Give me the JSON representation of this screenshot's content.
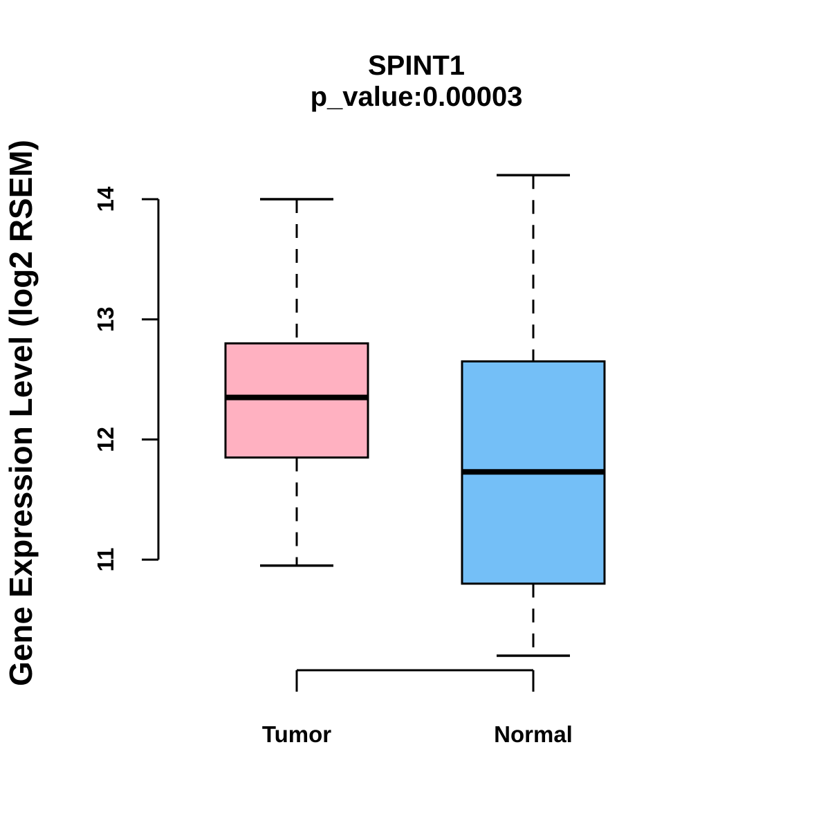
{
  "figure": {
    "background": "#FFFFFF"
  },
  "chart_data": {
    "type": "boxplot",
    "title": "SPINT1",
    "subtitle": "p_value:0.00003",
    "p_value": 3e-05,
    "ylabel": "Gene Expression Level (log2 RSEM)",
    "xlabel": "",
    "categories": [
      "Tumor",
      "Normal"
    ],
    "yticks": [
      11,
      12,
      13,
      14
    ],
    "ylim": [
      10.1,
      14.3
    ],
    "grid": false,
    "legend": "none",
    "whisker_style": "dashed",
    "line_color": "#000000",
    "groups": [
      {
        "name": "Tumor",
        "whisker_low": 10.95,
        "q1": 11.85,
        "median": 12.35,
        "q3": 12.8,
        "whisker_high": 14.0,
        "fill": "#FFB1C1"
      },
      {
        "name": "Normal",
        "whisker_low": 10.2,
        "q1": 10.8,
        "median": 11.73,
        "q3": 12.65,
        "whisker_high": 14.2,
        "fill": "#74BFF7"
      }
    ]
  }
}
